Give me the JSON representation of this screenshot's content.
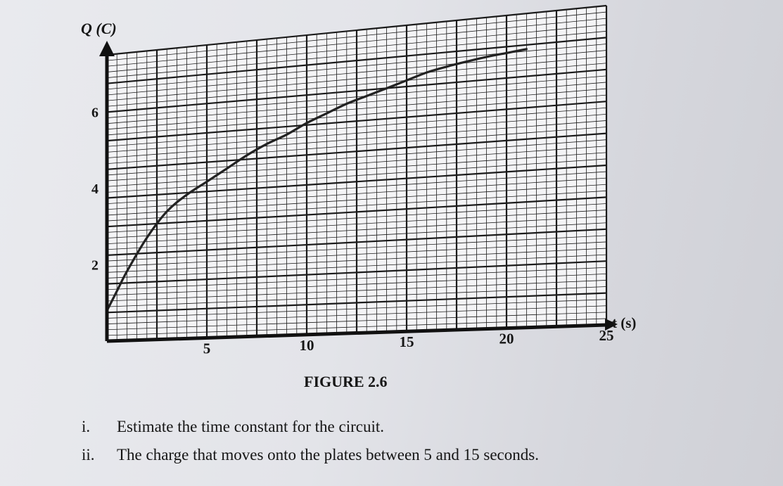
{
  "chart_data": {
    "type": "line",
    "ylabel": "Q (C)",
    "xlabel": "t (s)",
    "xlim": [
      0,
      25
    ],
    "ylim": [
      0,
      7.5
    ],
    "x_ticks": [
      "5",
      "10",
      "15",
      "20",
      "25"
    ],
    "y_ticks": [
      "2",
      "4",
      "6"
    ],
    "grid": true,
    "series": [
      {
        "x": [
          0,
          0.5,
          1,
          2,
          3,
          4,
          5,
          6,
          7,
          8,
          9,
          10,
          11,
          12,
          13,
          14,
          15,
          16,
          17,
          18,
          19,
          20,
          21
        ],
        "y": [
          0.8,
          1.3,
          1.8,
          2.65,
          3.3,
          3.7,
          4.0,
          4.3,
          4.6,
          4.85,
          5.05,
          5.3,
          5.5,
          5.7,
          5.85,
          6.0,
          6.15,
          6.3,
          6.4,
          6.48,
          6.55,
          6.6,
          6.65
        ]
      }
    ]
  },
  "caption": "FIGURE 2.6",
  "questions": [
    {
      "num": "i.",
      "text": "Estimate the time constant for the circuit."
    },
    {
      "num": "ii.",
      "text": "The charge that moves onto the plates between 5 and 15 seconds."
    }
  ]
}
